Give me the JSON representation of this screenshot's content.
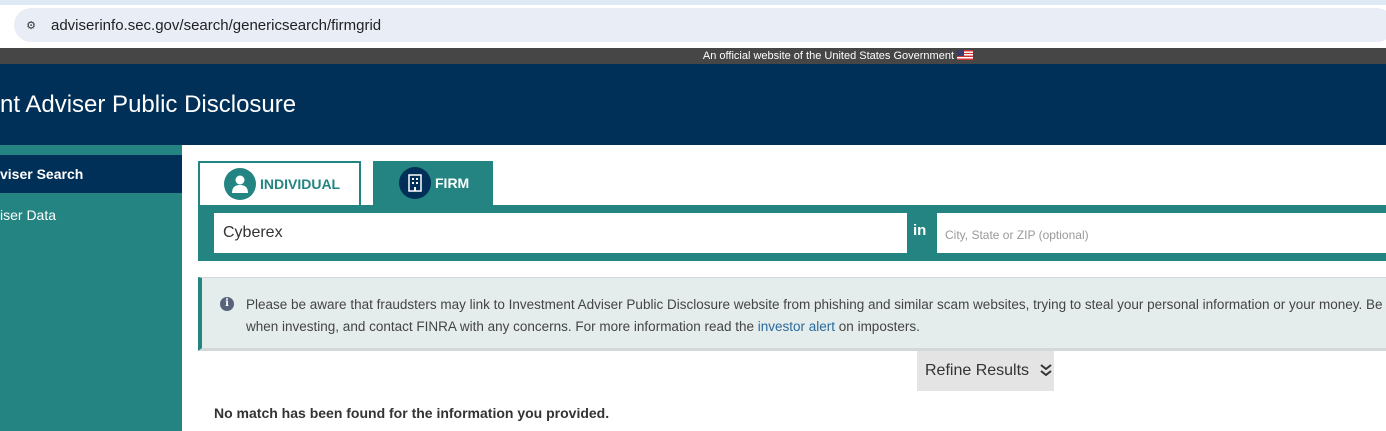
{
  "browser": {
    "url": "adviserinfo.sec.gov/search/genericsearch/firmgrid",
    "site_info_icon": "tune-icon"
  },
  "gov_banner": {
    "text": "An official website of the United States Government",
    "flag_icon": "us-flag-icon"
  },
  "header": {
    "title": "nt Adviser Public Disclosure"
  },
  "sidebar": {
    "items": [
      {
        "label": "viser Search",
        "active": true
      },
      {
        "label": "iser Data",
        "active": false
      }
    ]
  },
  "tabs": [
    {
      "label": "INDIVIDUAL",
      "icon": "person-icon",
      "active": false
    },
    {
      "label": "FIRM",
      "icon": "building-icon",
      "active": true
    }
  ],
  "search": {
    "query": "Cyberex",
    "in_label": "in",
    "location_placeholder": "City, State or ZIP (optional)"
  },
  "alert": {
    "text_before": "Please be aware that fraudsters may link to Investment Adviser Public Disclosure website from phishing and similar scam websites, trying to steal your personal information or your money. Be cautious when investing, and contact FINRA with any concerns. For more information read the ",
    "link": "investor alert",
    "text_after": " on imposters."
  },
  "refine": {
    "label": "Refine Results",
    "icon": "double-chevron-down-icon"
  },
  "results": {
    "message": "No match has been found for the information you provided."
  },
  "colors": {
    "teal": "#238481",
    "navy": "#003057"
  }
}
